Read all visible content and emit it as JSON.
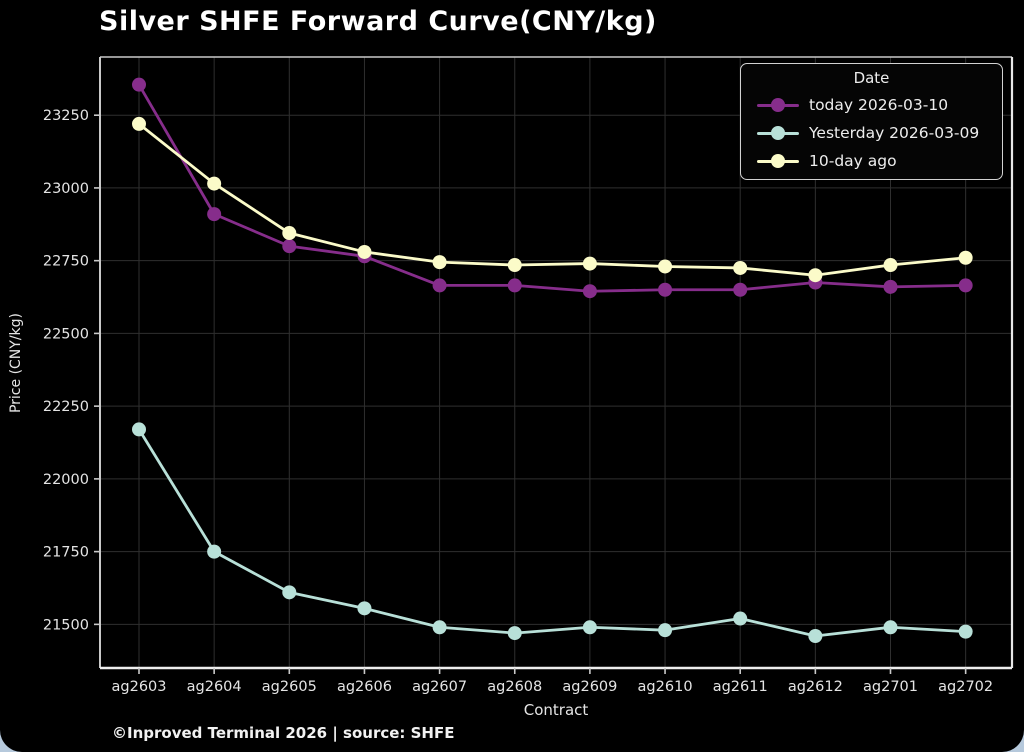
{
  "page": {
    "background_color": "#b6c9dc",
    "card_color": "#000000"
  },
  "header": {
    "title": "Silver SHFE Forward Curve(CNY/kg)"
  },
  "footer": {
    "text": "©Inproved Terminal 2026 | source: SHFE"
  },
  "chart_data": {
    "type": "line",
    "title": "Silver SHFE Forward Curve(CNY/kg)",
    "xlabel": "Contract",
    "ylabel": "Price (CNY/kg)",
    "categories": [
      "ag2603",
      "ag2604",
      "ag2605",
      "ag2606",
      "ag2607",
      "ag2608",
      "ag2609",
      "ag2610",
      "ag2611",
      "ag2612",
      "ag2701",
      "ag2702"
    ],
    "series": [
      {
        "name": "today 2026-03-10",
        "color": "#862d8b",
        "values": [
          23355,
          22910,
          22800,
          22765,
          22665,
          22665,
          22645,
          22650,
          22650,
          22675,
          22660,
          22665
        ]
      },
      {
        "name": "Yesterday 2026-03-09",
        "color": "#b8e0d8",
        "values": [
          22170,
          21750,
          21610,
          21555,
          21490,
          21470,
          21490,
          21480,
          21520,
          21460,
          21490,
          21475
        ]
      },
      {
        "name": "10-day ago",
        "color": "#fbfbc9",
        "values": [
          23220,
          23015,
          22845,
          22780,
          22745,
          22735,
          22740,
          22730,
          22725,
          22700,
          22735,
          22760
        ]
      }
    ],
    "legend": {
      "title": "Date",
      "position": "upper right"
    },
    "ylim": [
      21350,
      23450
    ],
    "yticks": [
      21500,
      21750,
      22000,
      22250,
      22500,
      22750,
      23000,
      23250
    ],
    "grid": true,
    "grid_color": "#2f2f2f",
    "spine_color": "#c9c9c9",
    "tick_label_color": "#e4e4e4"
  }
}
